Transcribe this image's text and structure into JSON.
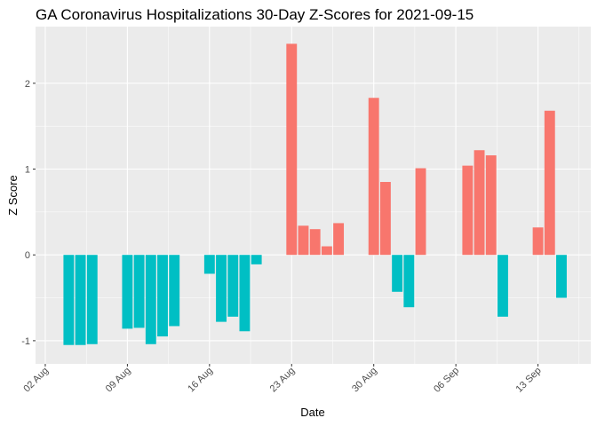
{
  "chart_data": {
    "type": "bar",
    "title": "GA Coronavirus Hospitalizations 30-Day Z-Scores for 2021-09-15",
    "xlabel": "Date",
    "ylabel": "Z Score",
    "ylim": [
      -1.27,
      2.66
    ],
    "yticks": [
      -1,
      0,
      1,
      2
    ],
    "xticks": [
      {
        "label": "02 Aug",
        "day": 0
      },
      {
        "label": "09 Aug",
        "day": 7
      },
      {
        "label": "16 Aug",
        "day": 14
      },
      {
        "label": "23 Aug",
        "day": 21
      },
      {
        "label": "30 Aug",
        "day": 28
      },
      {
        "label": "06 Sep",
        "day": 35
      },
      {
        "label": "13 Sep",
        "day": 42
      }
    ],
    "x_day_origin": "2021-08-02",
    "xlim_days": [
      -0.83,
      46.5
    ],
    "grid": true,
    "colors": {
      "positive": "#F8766D",
      "negative": "#00BFC4",
      "panel": "#EBEBEB",
      "grid": "#FFFFFF"
    },
    "points": [
      {
        "date": "2021-08-04",
        "day": 2,
        "value": -1.05
      },
      {
        "date": "2021-08-05",
        "day": 3,
        "value": -1.05
      },
      {
        "date": "2021-08-06",
        "day": 4,
        "value": -1.04
      },
      {
        "date": "2021-08-09",
        "day": 7,
        "value": -0.86
      },
      {
        "date": "2021-08-10",
        "day": 8,
        "value": -0.85
      },
      {
        "date": "2021-08-11",
        "day": 9,
        "value": -1.04
      },
      {
        "date": "2021-08-12",
        "day": 10,
        "value": -0.95
      },
      {
        "date": "2021-08-13",
        "day": 11,
        "value": -0.83
      },
      {
        "date": "2021-08-16",
        "day": 14,
        "value": -0.22
      },
      {
        "date": "2021-08-17",
        "day": 15,
        "value": -0.78
      },
      {
        "date": "2021-08-18",
        "day": 16,
        "value": -0.72
      },
      {
        "date": "2021-08-19",
        "day": 17,
        "value": -0.89
      },
      {
        "date": "2021-08-20",
        "day": 18,
        "value": -0.11
      },
      {
        "date": "2021-08-23",
        "day": 21,
        "value": 2.46
      },
      {
        "date": "2021-08-24",
        "day": 22,
        "value": 0.34
      },
      {
        "date": "2021-08-25",
        "day": 23,
        "value": 0.3
      },
      {
        "date": "2021-08-26",
        "day": 24,
        "value": 0.1
      },
      {
        "date": "2021-08-27",
        "day": 25,
        "value": 0.37
      },
      {
        "date": "2021-08-30",
        "day": 28,
        "value": 1.83
      },
      {
        "date": "2021-08-31",
        "day": 29,
        "value": 0.85
      },
      {
        "date": "2021-09-01",
        "day": 30,
        "value": -0.43
      },
      {
        "date": "2021-09-02",
        "day": 31,
        "value": -0.61
      },
      {
        "date": "2021-09-03",
        "day": 32,
        "value": 1.01
      },
      {
        "date": "2021-09-07",
        "day": 36,
        "value": 1.04
      },
      {
        "date": "2021-09-08",
        "day": 37,
        "value": 1.22
      },
      {
        "date": "2021-09-09",
        "day": 38,
        "value": 1.16
      },
      {
        "date": "2021-09-10",
        "day": 39,
        "value": -0.72
      },
      {
        "date": "2021-09-13",
        "day": 42,
        "value": 0.32
      },
      {
        "date": "2021-09-14",
        "day": 43,
        "value": 1.68
      },
      {
        "date": "2021-09-15",
        "day": 44,
        "value": -0.5
      }
    ]
  }
}
